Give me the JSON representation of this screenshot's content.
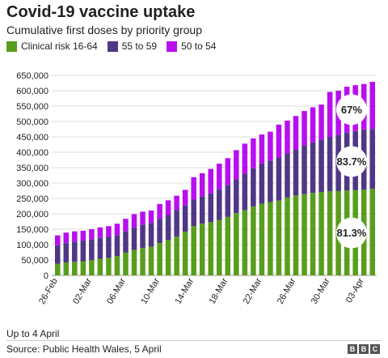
{
  "header": {
    "title": "Covid-19 vaccine uptake",
    "subtitle": "Cumulative first doses by priority group"
  },
  "legend": {
    "items": [
      {
        "label": "Clinical risk 16-64",
        "color": "#589e1c"
      },
      {
        "label": "55 to 59",
        "color": "#4f3785"
      },
      {
        "label": "50 to 54",
        "color": "#b90ff0"
      }
    ]
  },
  "chart_data": {
    "type": "bar",
    "stacked": true,
    "title": "Covid-19 vaccine uptake",
    "subtitle": "Cumulative first doses by priority group",
    "xlabel": "",
    "ylabel": "",
    "ylim": [
      0,
      650000
    ],
    "yticks": [
      0,
      50000,
      100000,
      150000,
      200000,
      250000,
      300000,
      350000,
      400000,
      450000,
      500000,
      550000,
      600000,
      650000
    ],
    "ytick_labels": [
      "0",
      "50,000",
      "100,000",
      "150,000",
      "200,000",
      "250,000",
      "300,000",
      "350,000",
      "400,000",
      "450,000",
      "500,000",
      "550,000",
      "600,000",
      "650,000"
    ],
    "grid": true,
    "legend_position": "top-left",
    "categories": [
      "26-Feb",
      "27-Feb",
      "28-Feb",
      "01-Mar",
      "02-Mar",
      "03-Mar",
      "04-Mar",
      "05-Mar",
      "06-Mar",
      "07-Mar",
      "08-Mar",
      "09-Mar",
      "10-Mar",
      "11-Mar",
      "12-Mar",
      "13-Mar",
      "14-Mar",
      "15-Mar",
      "16-Mar",
      "17-Mar",
      "18-Mar",
      "19-Mar",
      "20-Mar",
      "21-Mar",
      "22-Mar",
      "23-Mar",
      "24-Mar",
      "25-Mar",
      "26-Mar",
      "27-Mar",
      "28-Mar",
      "29-Mar",
      "30-Mar",
      "31-Mar",
      "01-Apr",
      "02-Apr",
      "03-Apr",
      "04-Apr"
    ],
    "x_tick_labels": [
      "26-Feb",
      "02-Mar",
      "06-Mar",
      "10-Mar",
      "14-Mar",
      "18-Mar",
      "22-Mar",
      "26-Mar",
      "30-Mar",
      "03-Apr"
    ],
    "series": [
      {
        "name": "Clinical risk 16-64",
        "color": "#589e1c",
        "values": [
          38000,
          42000,
          44000,
          46000,
          50000,
          54000,
          57000,
          63000,
          74000,
          83000,
          89000,
          93000,
          105000,
          115000,
          126000,
          142000,
          160000,
          168000,
          173000,
          180000,
          190000,
          202000,
          212000,
          224000,
          233000,
          238000,
          243000,
          253000,
          260000,
          264000,
          268000,
          271000,
          273000,
          274000,
          276000,
          277000,
          279000,
          281000
        ]
      },
      {
        "name": "55 to 59",
        "color": "#4f3785",
        "values": [
          60000,
          63000,
          66000,
          67000,
          68000,
          68000,
          68000,
          68000,
          69000,
          72000,
          75000,
          77000,
          79000,
          81000,
          86000,
          85000,
          86000,
          89000,
          93000,
          100000,
          103000,
          110000,
          118000,
          124000,
          131000,
          135000,
          140000,
          143000,
          149000,
          158000,
          164000,
          170000,
          177000,
          183000,
          188000,
          192000,
          195000,
          195000
        ]
      },
      {
        "name": "50 to 54",
        "color": "#b90ff0",
        "values": [
          32000,
          34000,
          33000,
          32000,
          32000,
          34000,
          35000,
          37000,
          41000,
          44000,
          43000,
          41000,
          48000,
          48000,
          47000,
          51000,
          73000,
          75000,
          80000,
          83000,
          88000,
          95000,
          98000,
          97000,
          94000,
          94000,
          107000,
          107000,
          109000,
          112000,
          114000,
          114000,
          146000,
          143000,
          149000,
          149000,
          148000,
          153000
        ]
      }
    ],
    "annotations": [
      {
        "text": "67%",
        "series": "50 to 54"
      },
      {
        "text": "83.7%",
        "series": "55 to 59"
      },
      {
        "text": "81.3%",
        "series": "Clinical risk 16-64"
      }
    ]
  },
  "footer": {
    "note": "Up to 4 April",
    "source": "Source: Public Health Wales, 5 April",
    "logo_letters": [
      "B",
      "B",
      "C"
    ]
  }
}
